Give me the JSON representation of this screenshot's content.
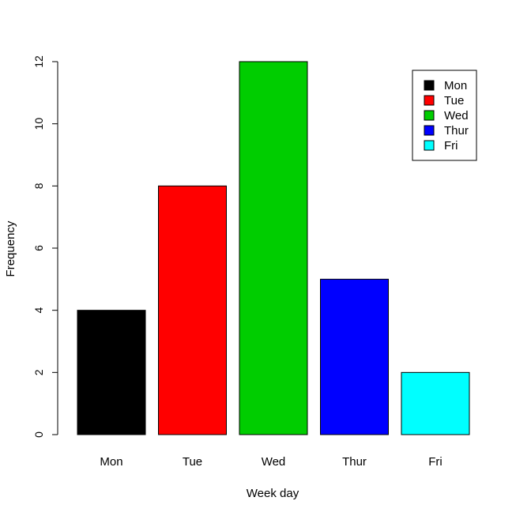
{
  "chart_data": {
    "type": "bar",
    "title": "",
    "xlabel": "Week day",
    "ylabel": "Frequency",
    "categories": [
      "Mon",
      "Tue",
      "Wed",
      "Thur",
      "Fri"
    ],
    "values": [
      4,
      8,
      12,
      5,
      2
    ],
    "colors": [
      "#000000",
      "#ff0000",
      "#00cd00",
      "#0000ff",
      "#00ffff"
    ],
    "ylim": [
      0,
      12
    ],
    "yticks": [
      0,
      2,
      4,
      6,
      8,
      10,
      12
    ],
    "grid": false,
    "legend": {
      "placement": "top-right",
      "entries": [
        "Mon",
        "Tue",
        "Wed",
        "Thur",
        "Fri"
      ]
    }
  }
}
